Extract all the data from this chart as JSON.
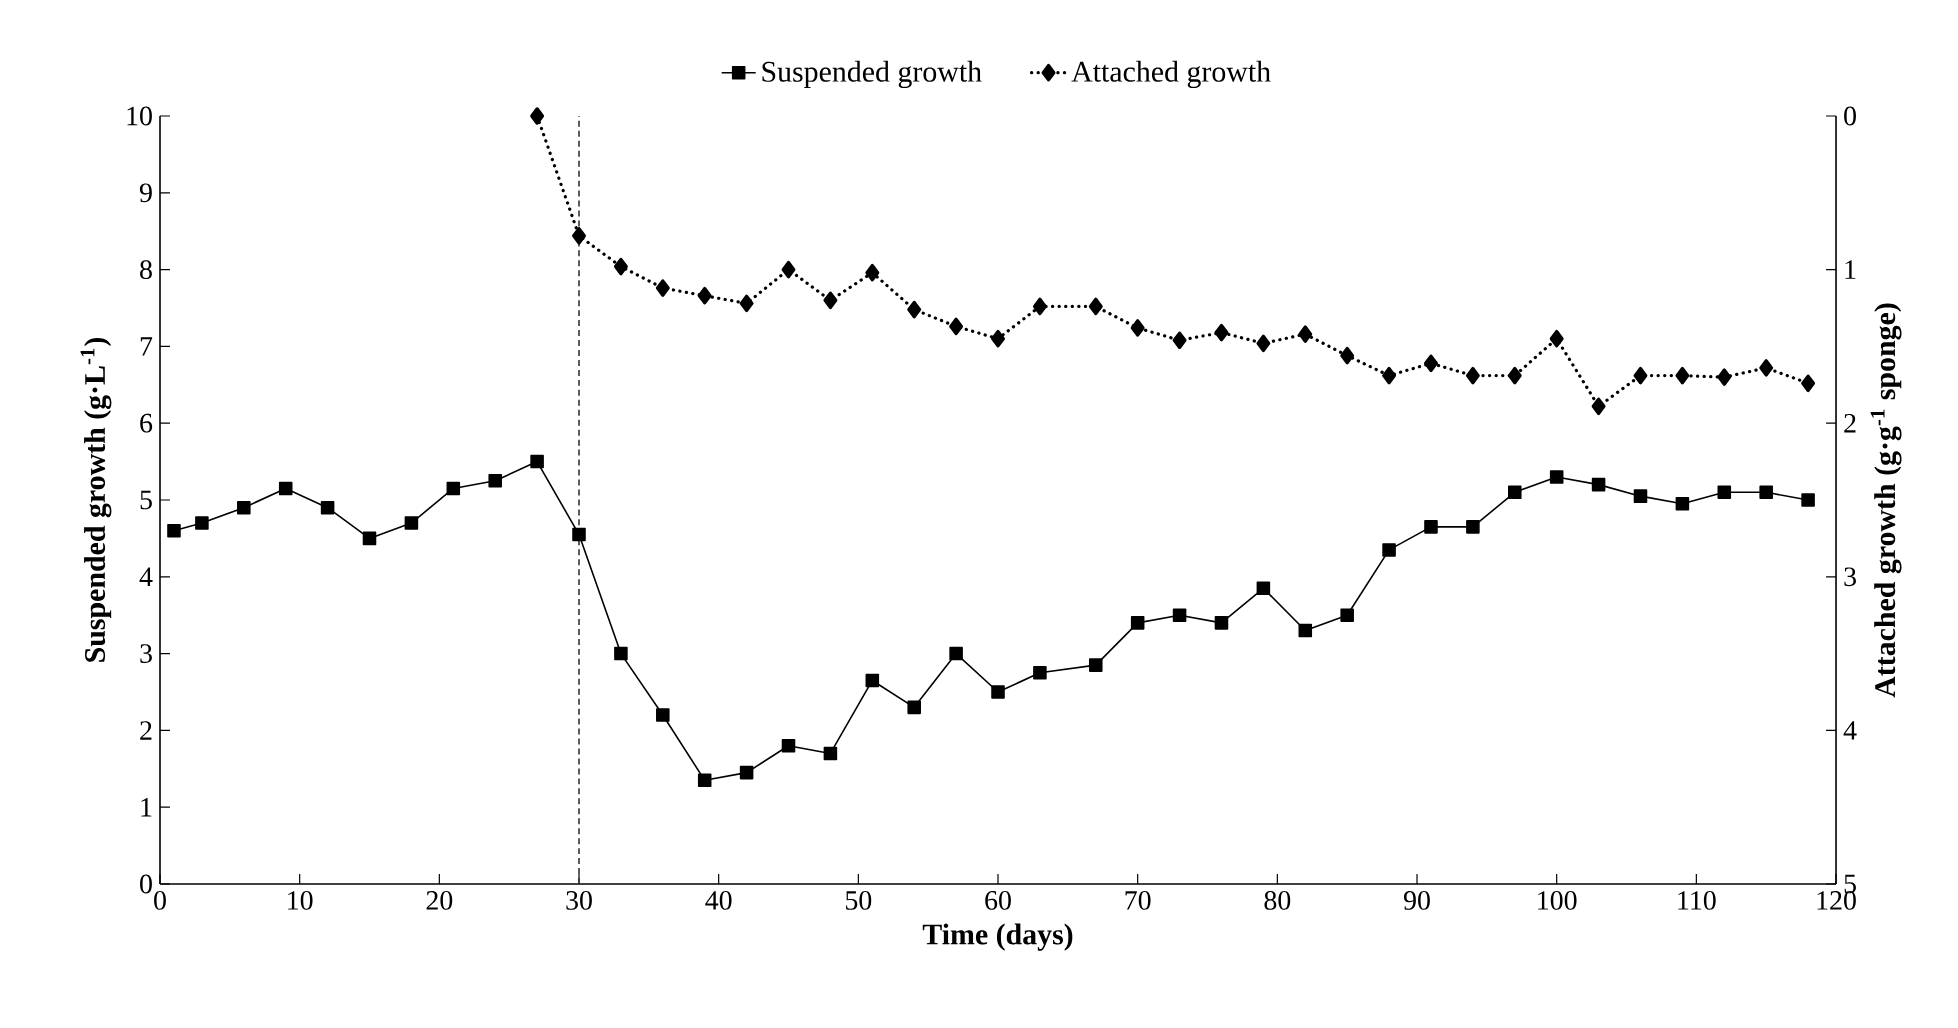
{
  "chart_data": {
    "type": "line",
    "xlabel": "Time (days)",
    "ylabel": "Suspended growth (g·L$^{-1}$)",
    "y2label": "Attached growth  (g·g$^{-1}$ sponge)",
    "xlim": [
      0,
      120
    ],
    "xticks": [
      0,
      10,
      20,
      30,
      40,
      50,
      60,
      70,
      80,
      90,
      100,
      110,
      120
    ],
    "ylim": [
      0,
      10
    ],
    "yticks": [
      0,
      1,
      2,
      3,
      4,
      5,
      6,
      7,
      8,
      9,
      10
    ],
    "y2lim": [
      5,
      0
    ],
    "y2ticks": [
      0,
      1,
      2,
      3,
      4,
      5
    ],
    "legend": "top",
    "grid": false,
    "ref_lines": [
      {
        "axis": "x",
        "value": 30,
        "color": "#333333",
        "line_style": "dashed"
      }
    ],
    "series": [
      {
        "name": "Suspended growth",
        "color": "#000000",
        "marker": "square",
        "line_style": "solid",
        "x": [
          1,
          3,
          6,
          9,
          12,
          15,
          18,
          21,
          24,
          27,
          30,
          33,
          36,
          39,
          42,
          45,
          48,
          51,
          54,
          57,
          60,
          63,
          67,
          70,
          73,
          76,
          79,
          82,
          85,
          88,
          91,
          94,
          97,
          100,
          103,
          106,
          109,
          112,
          115,
          118
        ],
        "values": [
          4.6,
          4.7,
          4.9,
          5.15,
          4.9,
          4.5,
          4.7,
          5.15,
          5.25,
          5.5,
          4.55,
          3.0,
          2.2,
          1.35,
          1.45,
          1.8,
          1.7,
          2.65,
          2.3,
          3.0,
          2.5,
          2.75,
          2.85,
          3.4,
          3.5,
          3.4,
          3.85,
          3.3,
          3.5,
          4.35,
          4.65,
          4.65,
          5.1,
          5.3,
          5.2,
          5.05,
          4.95,
          5.1,
          5.1,
          5.0
        ]
      },
      {
        "name": "Attached growth",
        "color": "#000000",
        "marker": "diamond",
        "line_style": "dotted",
        "axis": "y2",
        "x": [
          27,
          30,
          33,
          36,
          39,
          42,
          45,
          48,
          51,
          54,
          57,
          60,
          63,
          67,
          70,
          73,
          76,
          79,
          82,
          85,
          88,
          91,
          94,
          97,
          100,
          103,
          106,
          109,
          112,
          115,
          118
        ],
        "values": [
          0,
          0.78,
          0.98,
          1.12,
          1.17,
          1.22,
          1.0,
          1.2,
          1.02,
          1.26,
          1.37,
          1.45,
          1.24,
          1.24,
          1.38,
          1.46,
          1.41,
          1.48,
          1.42,
          1.56,
          1.69,
          1.61,
          1.69,
          1.69,
          1.45,
          1.89,
          1.69,
          1.69,
          1.7,
          1.64,
          1.74
        ]
      }
    ]
  }
}
